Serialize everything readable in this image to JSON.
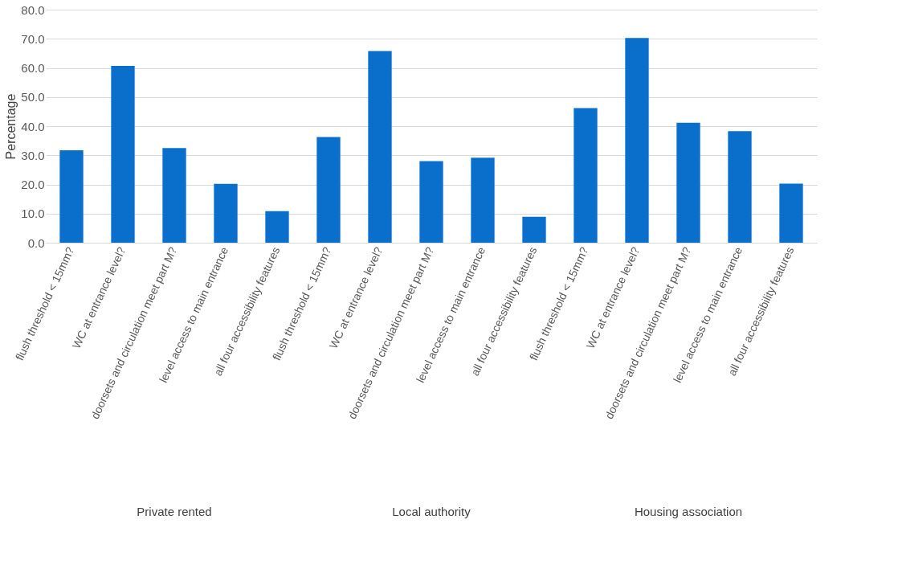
{
  "chart_data": {
    "type": "bar",
    "ylabel": "Percentage",
    "categories": [
      null,
      "flush threshold < 15mm?",
      "WC at entrance level?",
      "doorsets and circulation meet part M?",
      "level access to main entrance",
      "all four accessibility features",
      null,
      "flush threshold < 15mm?",
      "WC at entrance level?",
      "doorsets and circulation meet part M?",
      "level access to main entrance",
      "all four accessibility features",
      null,
      "flush threshold < 15mm?",
      "WC at entrance level?",
      "doorsets and circulation meet part M?",
      "level access to main entrance",
      "all four accessibility features"
    ],
    "values": [
      null,
      31.7,
      60.7,
      32.5,
      20.2,
      10.8,
      null,
      36.3,
      65.8,
      28.0,
      29.2,
      8.9,
      null,
      46.2,
      70.3,
      41.2,
      38.3,
      20.3
    ],
    "color": "#0a6fcb",
    "ylim": [
      0,
      80
    ],
    "yticks": [
      {
        "value": 0,
        "label": "0.0"
      },
      {
        "value": 10,
        "label": "10.0"
      },
      {
        "value": 20,
        "label": "20.0"
      },
      {
        "value": 30,
        "label": "30.0"
      },
      {
        "value": 40,
        "label": "40.0"
      },
      {
        "value": 50,
        "label": "50.0"
      },
      {
        "value": 60,
        "label": "60.0"
      },
      {
        "value": 70,
        "label": "70.0"
      },
      {
        "value": 80,
        "label": "80.0"
      }
    ],
    "grid": "y",
    "annotations": [
      "Private rented",
      "Local authority",
      "Housing association"
    ]
  }
}
